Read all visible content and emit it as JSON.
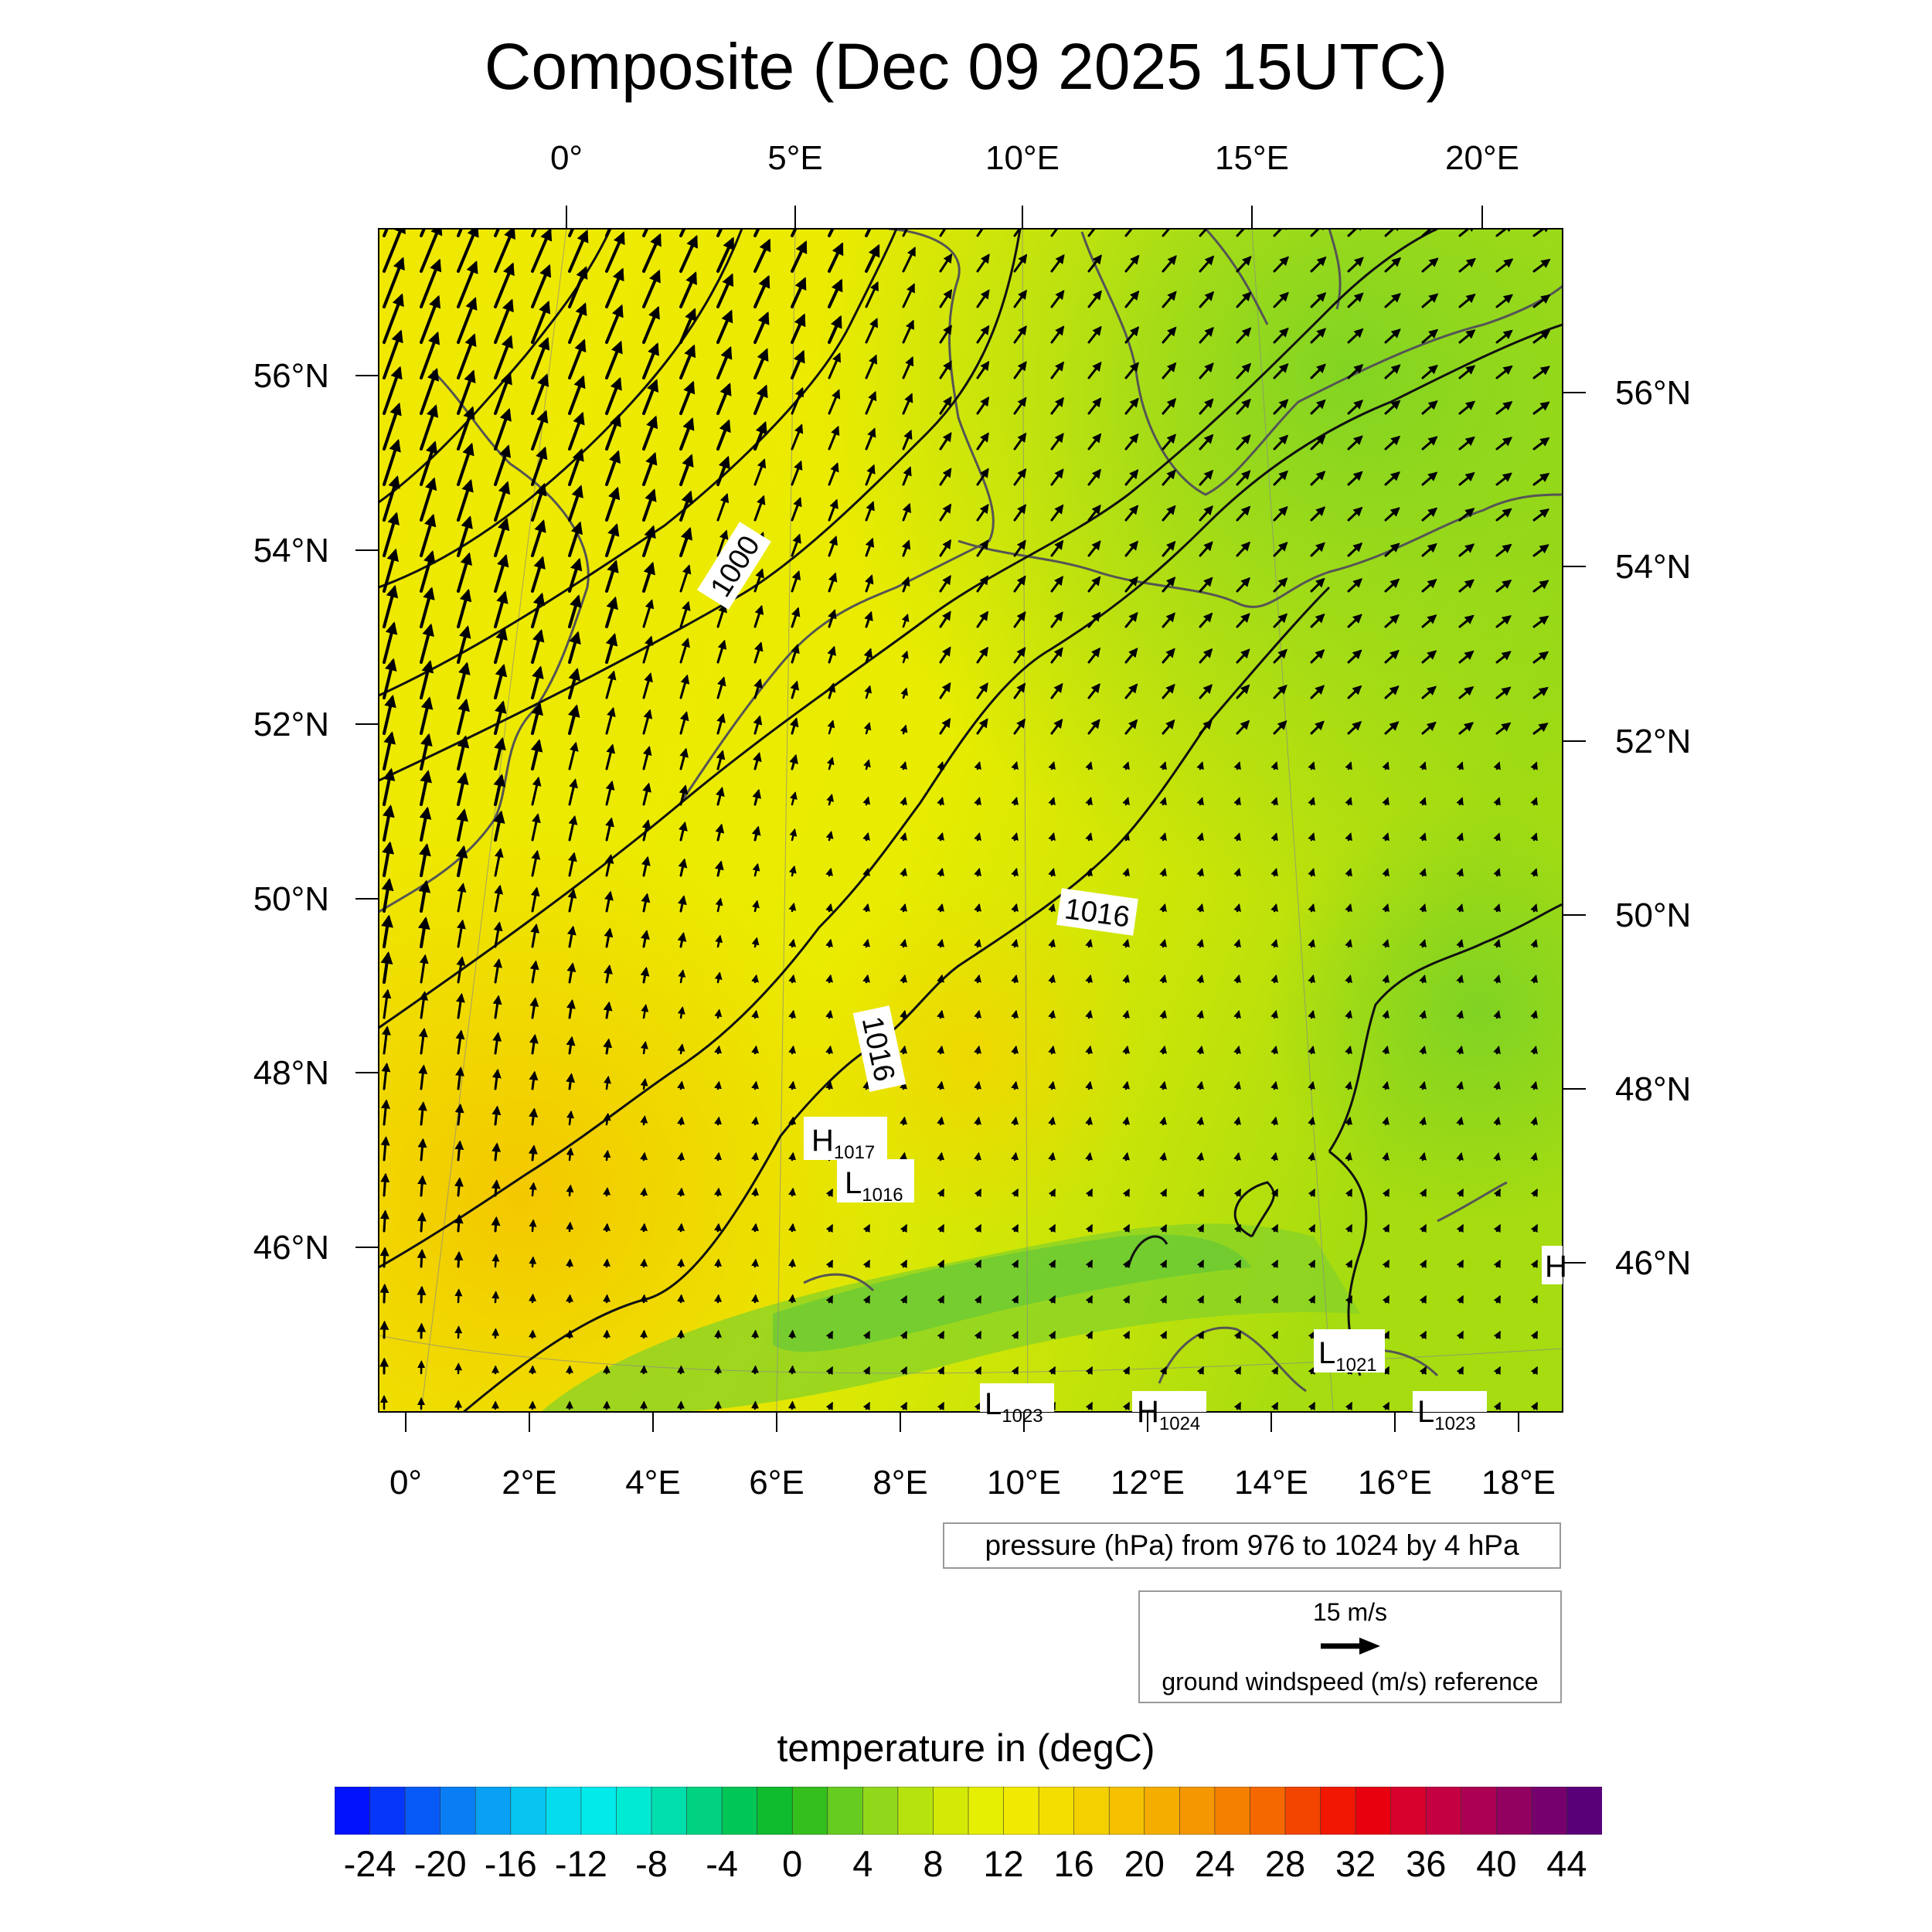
{
  "title": "Composite (Dec 09 2025 15UTC)",
  "map": {
    "top_axis_labels": [
      "0°",
      "5°E",
      "10°E",
      "15°E",
      "20°E"
    ],
    "bottom_axis_labels": [
      "0°",
      "2°E",
      "4°E",
      "6°E",
      "8°E",
      "10°E",
      "12°E",
      "14°E",
      "16°E",
      "18°E"
    ],
    "left_axis_labels": [
      "56°N",
      "54°N",
      "52°N",
      "50°N",
      "48°N",
      "46°N"
    ],
    "right_axis_labels": [
      "56°N",
      "54°N",
      "52°N",
      "50°N",
      "48°N",
      "46°N"
    ],
    "isobar_labels": [
      "1000",
      "1016",
      "1016"
    ],
    "pressure_centers": [
      {
        "type": "H",
        "value": "1017"
      },
      {
        "type": "L",
        "value": "1016"
      },
      {
        "type": "L",
        "value": "1021"
      },
      {
        "type": "L",
        "value": "1023"
      },
      {
        "type": "H",
        "value": "1024"
      },
      {
        "type": "L",
        "value": "1023"
      },
      {
        "type": "H",
        "value": ""
      }
    ],
    "colors": {
      "warm_field": "#f5e800",
      "cool_field": "#8ad41c",
      "isobar": "#111111",
      "coastline": "#555555",
      "wind_arrow": "#000000"
    }
  },
  "legend": {
    "pressure_note": "pressure (hPa) from 976 to 1024 by 4 hPa",
    "wind_reference_speed": "15 m/s",
    "wind_reference_label": "ground windspeed (m/s) reference"
  },
  "colorbar": {
    "title": "temperature in (degC)",
    "labels": [
      "-24",
      "-20",
      "-16",
      "-12",
      "-8",
      "-4",
      "0",
      "4",
      "8",
      "12",
      "16",
      "20",
      "24",
      "28",
      "32",
      "36",
      "40",
      "44"
    ],
    "min": -26,
    "max": 46,
    "step": 2
  }
}
